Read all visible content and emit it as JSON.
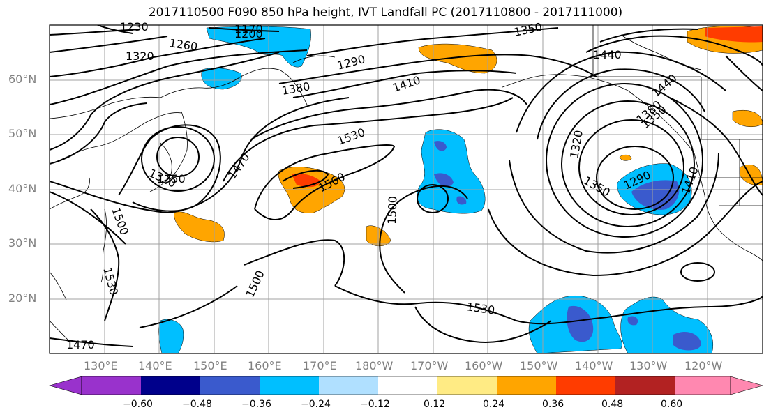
{
  "title": "2017110500 F090 850 hPa height, IVT Landfall PC (2017110800 - 2017111000)",
  "lat_labels": [
    "60°N",
    "50°N",
    "40°N",
    "30°N",
    "20°N"
  ],
  "lon_labels": [
    "130°E",
    "140°E",
    "150°E",
    "160°E",
    "170°E",
    "180°W",
    "170°W",
    "160°W",
    "150°W",
    "140°W",
    "130°W",
    "120°W"
  ],
  "contour_labels": [
    "1230",
    "1200",
    "1170",
    "1260",
    "1320",
    "1290",
    "1350",
    "1440",
    "1380",
    "1410",
    "1530",
    "1470",
    "1560",
    "1500",
    "1320",
    "1350",
    "1320",
    "1350",
    "1290",
    "1410",
    "1500",
    "1530",
    "1530",
    "1500",
    "1470",
    "1440",
    "1380",
    "1350"
  ],
  "colorbar": {
    "ticks": [
      "−0.60",
      "−0.48",
      "−0.36",
      "−0.24",
      "−0.12",
      "0.12",
      "0.24",
      "0.36",
      "0.48",
      "0.60"
    ],
    "colors": [
      "#9932cc",
      "#00008b",
      "#3a5acd",
      "#00bfff",
      "#b0e0ff",
      "#ffffff",
      "#ffeb84",
      "#ffa500",
      "#ff3c00",
      "#b22222",
      "#ff88b0"
    ]
  }
}
